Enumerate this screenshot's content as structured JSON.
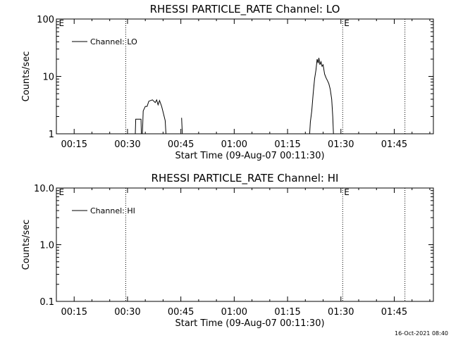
{
  "footer": {
    "timestamp": "16-Oct-2021 08:40"
  },
  "chart_data": [
    {
      "type": "line",
      "title": "RHESSI PARTICLE_RATE Channel: LO",
      "xlabel": "Start Time (09-Aug-07 00:11:30)",
      "ylabel": "Counts/sec",
      "y_scale": "log",
      "xlim": [
        10,
        116
      ],
      "ylim": [
        1,
        100
      ],
      "x_tick_values": [
        15,
        30,
        45,
        60,
        75,
        90,
        105
      ],
      "x_tick_labels": [
        "00:15",
        "00:30",
        "00:45",
        "01:00",
        "01:15",
        "01:30",
        "01:45"
      ],
      "y_tick_values": [
        1,
        10,
        100
      ],
      "y_tick_labels": [
        "1",
        "10",
        "100"
      ],
      "legend_position": "top-left",
      "event_lines": [
        29.5,
        90.5,
        108
      ],
      "event_markers": [
        {
          "x": 10.5,
          "label": "E"
        },
        {
          "x": 90.7,
          "label": "E"
        }
      ],
      "series": [
        {
          "name": "Channel: LO",
          "segments": [
            [
              [
                32.2,
                1
              ],
              [
                32.3,
                1.8
              ],
              [
                33.8,
                1.8
              ],
              [
                33.9,
                1
              ],
              [
                34.2,
                1
              ],
              [
                34.4,
                2.5
              ],
              [
                35,
                3
              ],
              [
                35.5,
                3
              ],
              [
                36,
                3.7
              ],
              [
                37,
                3.9
              ],
              [
                37.8,
                3.5
              ],
              [
                38.2,
                3.9
              ],
              [
                38.6,
                3.2
              ],
              [
                39,
                3.8
              ],
              [
                39.6,
                3
              ],
              [
                40,
                2.4
              ],
              [
                40.6,
                1.7
              ],
              [
                40.8,
                1
              ]
            ],
            [
              [
                45.2,
                1.9
              ],
              [
                45.4,
                1
              ]
            ],
            [
              [
                81.2,
                1
              ],
              [
                81.4,
                1.6
              ],
              [
                81.8,
                2.5
              ],
              [
                82.2,
                5
              ],
              [
                82.6,
                9
              ],
              [
                83,
                13
              ],
              [
                83.3,
                20
              ],
              [
                83.6,
                17
              ],
              [
                83.8,
                21
              ],
              [
                84.1,
                16
              ],
              [
                84.4,
                18
              ],
              [
                84.7,
                15
              ],
              [
                85,
                16
              ],
              [
                85.4,
                11
              ],
              [
                85.8,
                9.5
              ],
              [
                86.2,
                8.5
              ],
              [
                86.6,
                7.5
              ],
              [
                87,
                6
              ],
              [
                87.4,
                4
              ],
              [
                87.7,
                2
              ],
              [
                87.9,
                1
              ]
            ]
          ]
        }
      ]
    },
    {
      "type": "line",
      "title": "RHESSI PARTICLE_RATE Channel: HI",
      "xlabel": "Start Time (09-Aug-07 00:11:30)",
      "ylabel": "Counts/sec",
      "y_scale": "log",
      "xlim": [
        10,
        116
      ],
      "ylim": [
        0.1,
        10
      ],
      "x_tick_values": [
        15,
        30,
        45,
        60,
        75,
        90,
        105
      ],
      "x_tick_labels": [
        "00:15",
        "00:30",
        "00:45",
        "01:00",
        "01:15",
        "01:30",
        "01:45"
      ],
      "y_tick_values": [
        0.1,
        1,
        10
      ],
      "y_tick_labels": [
        "0.1",
        "1.0",
        "10.0"
      ],
      "legend_position": "top-left",
      "event_lines": [
        29.5,
        90.5,
        108
      ],
      "event_markers": [
        {
          "x": 10.5,
          "label": "E"
        },
        {
          "x": 90.7,
          "label": "E"
        }
      ],
      "series": [
        {
          "name": "Channel: HI",
          "segments": []
        }
      ]
    }
  ]
}
